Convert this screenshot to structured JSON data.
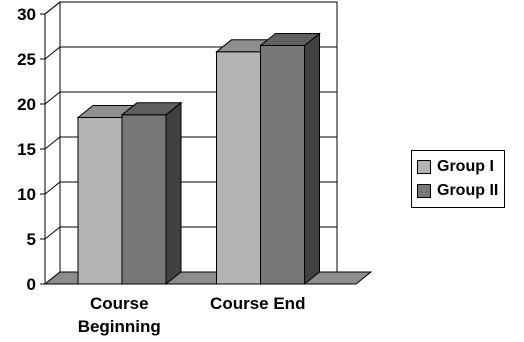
{
  "chart_data": {
    "type": "bar",
    "categories": [
      "Course\nBeginning",
      "Course End"
    ],
    "series": [
      {
        "name": "Group I",
        "values": [
          18.5,
          25.8
        ],
        "color": "#b3b3b3"
      },
      {
        "name": "Group II",
        "values": [
          18.8,
          26.5
        ],
        "color": "#777777"
      }
    ],
    "ylim": [
      0,
      30
    ],
    "yticks": [
      0,
      5,
      10,
      15,
      20,
      25,
      30
    ],
    "grid": true,
    "three_d": true,
    "legend_position": "right"
  }
}
